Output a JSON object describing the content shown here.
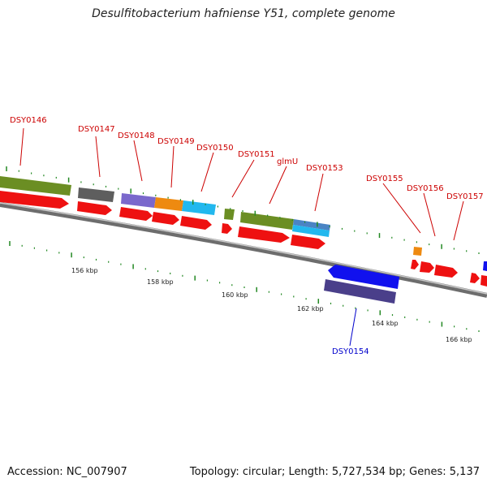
{
  "title": "Desulfitobacterium hafniense Y51, complete genome",
  "footer": {
    "accession": "Accession: NC_007907",
    "summary": "Topology: circular; Length: 5,727,534 bp; Genes: 5,137"
  },
  "colors": {
    "gene_label": "#cc0000",
    "gene_label_minus": "#0000cc",
    "cds": "#ee1111",
    "backbone": "#8a8a8a",
    "ticks": "#228822"
  },
  "ruler": {
    "labels": [
      "156 kbp",
      "158 kbp",
      "160 kbp",
      "162 kbp",
      "164 kbp",
      "166 kbp"
    ]
  },
  "gene_labels": {
    "plus": [
      "DSY0146",
      "DSY0147",
      "DSY0148",
      "DSY0149",
      "DSY0150",
      "DSY0151",
      "glmU",
      "DSY0153",
      "DSY0155",
      "DSY0156",
      "DSY0157"
    ],
    "minus": [
      "DSY0154"
    ]
  }
}
